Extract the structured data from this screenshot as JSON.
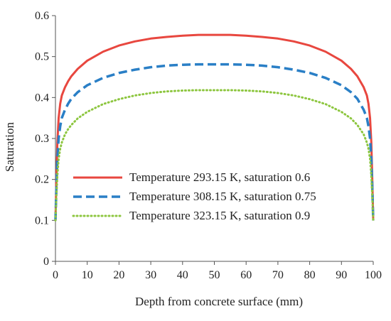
{
  "chart_data": {
    "type": "line",
    "xlabel": "Depth from concrete surface (mm)",
    "ylabel": "Saturation",
    "xlim": [
      0,
      100
    ],
    "ylim": [
      0,
      0.6
    ],
    "xticks": [
      0,
      10,
      20,
      30,
      40,
      50,
      60,
      70,
      80,
      90,
      100
    ],
    "yticks": [
      0,
      0.1,
      0.2,
      0.3,
      0.4,
      0.5,
      0.6
    ],
    "xtick_labels": [
      "0",
      "10",
      "20",
      "30",
      "40",
      "50",
      "60",
      "70",
      "80",
      "90",
      "100"
    ],
    "ytick_labels": [
      "0",
      "0.1",
      "0.2",
      "0.3",
      "0.4",
      "0.5",
      "0.6"
    ],
    "grid": false,
    "legend_position": "lower-left",
    "series": [
      {
        "name": "Temperature 293.15 K, saturation 0.6",
        "color": "#e8473f",
        "style": "solid",
        "x": [
          0,
          0.3,
          0.6,
          1,
          1.5,
          2,
          3,
          4,
          5,
          7,
          10,
          15,
          20,
          25,
          30,
          35,
          40,
          45,
          50,
          55,
          60,
          65,
          70,
          75,
          80,
          85,
          90,
          93,
          95,
          97,
          98,
          98.5,
          99,
          99.4,
          99.7,
          100
        ],
        "y": [
          0.1,
          0.2,
          0.29,
          0.35,
          0.385,
          0.405,
          0.425,
          0.44,
          0.452,
          0.47,
          0.49,
          0.512,
          0.527,
          0.537,
          0.544,
          0.548,
          0.551,
          0.553,
          0.553,
          0.553,
          0.551,
          0.548,
          0.544,
          0.537,
          0.527,
          0.512,
          0.49,
          0.47,
          0.452,
          0.425,
          0.405,
          0.385,
          0.35,
          0.29,
          0.2,
          0.1
        ]
      },
      {
        "name": "Temperature 308.15 K, saturation 0.75",
        "color": "#2a7fc6",
        "style": "dashed",
        "x": [
          0,
          0.3,
          0.6,
          1,
          1.5,
          2,
          3,
          4,
          5,
          7,
          10,
          15,
          20,
          25,
          30,
          35,
          40,
          45,
          50,
          55,
          60,
          65,
          70,
          75,
          80,
          85,
          90,
          93,
          95,
          97,
          98,
          98.5,
          99,
          99.4,
          99.7,
          100
        ],
        "y": [
          0.1,
          0.18,
          0.25,
          0.3,
          0.33,
          0.35,
          0.37,
          0.385,
          0.397,
          0.413,
          0.43,
          0.448,
          0.46,
          0.468,
          0.474,
          0.478,
          0.48,
          0.481,
          0.481,
          0.481,
          0.48,
          0.478,
          0.474,
          0.468,
          0.46,
          0.448,
          0.43,
          0.413,
          0.397,
          0.37,
          0.35,
          0.33,
          0.3,
          0.25,
          0.18,
          0.1
        ]
      },
      {
        "name": "Temperature 323.15 K, saturation 0.9",
        "color": "#8dc63f",
        "style": "dotted",
        "x": [
          0,
          0.3,
          0.6,
          1,
          1.5,
          2,
          3,
          4,
          5,
          7,
          10,
          15,
          20,
          25,
          30,
          35,
          40,
          45,
          50,
          55,
          60,
          65,
          70,
          75,
          80,
          85,
          90,
          93,
          95,
          97,
          98,
          98.5,
          99,
          99.4,
          99.7,
          100
        ],
        "y": [
          0.1,
          0.16,
          0.21,
          0.25,
          0.275,
          0.29,
          0.31,
          0.323,
          0.333,
          0.349,
          0.365,
          0.384,
          0.396,
          0.405,
          0.411,
          0.415,
          0.417,
          0.418,
          0.418,
          0.418,
          0.417,
          0.415,
          0.411,
          0.405,
          0.396,
          0.384,
          0.365,
          0.349,
          0.333,
          0.31,
          0.29,
          0.275,
          0.25,
          0.21,
          0.16,
          0.1
        ]
      }
    ]
  }
}
